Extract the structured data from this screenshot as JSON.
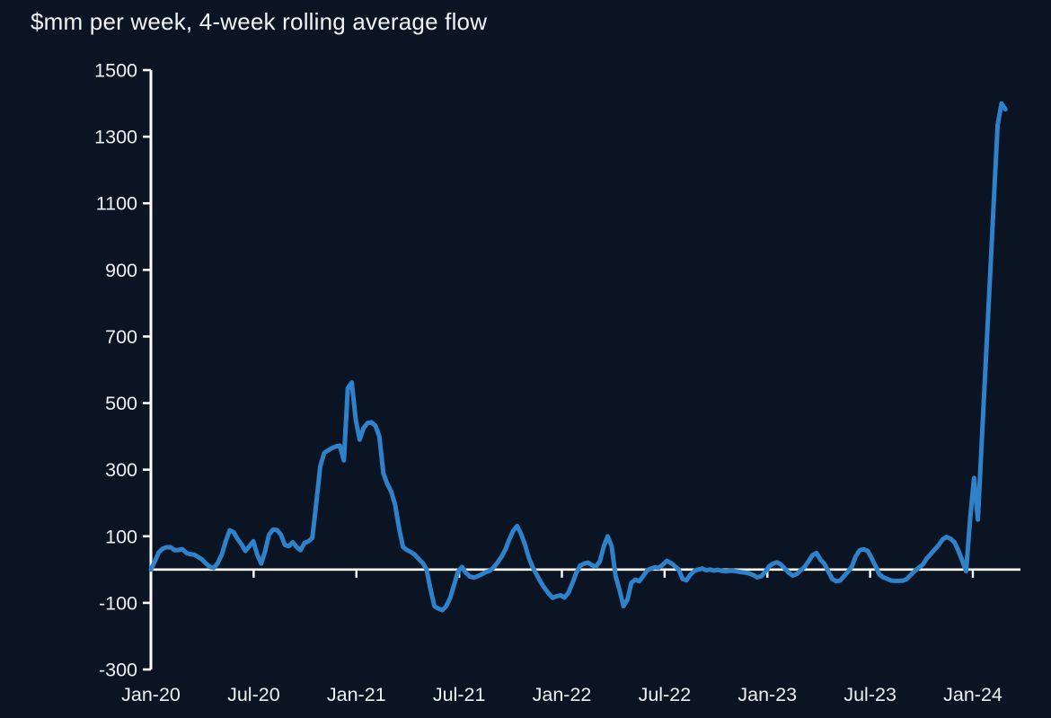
{
  "page": {
    "background": "#0a1422"
  },
  "header": {
    "title": "$mm per week, 4-week rolling average flow"
  },
  "chart_data": {
    "type": "line",
    "title": "$mm per week, 4-week rolling average flow",
    "unit": "$mm per week",
    "grid": false,
    "legend": null,
    "zero_line": true,
    "ylim": [
      -300,
      1500
    ],
    "y_ticks": [
      -300,
      -100,
      100,
      300,
      500,
      700,
      900,
      1100,
      1300,
      1500
    ],
    "x_tick_labels": [
      "Jan-20",
      "Jul-20",
      "Jan-21",
      "Jul-21",
      "Jan-22",
      "Jul-22",
      "Jan-23",
      "Jul-23",
      "Jan-24"
    ],
    "x_tick_months": [
      0,
      6,
      12,
      18,
      24,
      30,
      36,
      42,
      48
    ],
    "colors": {
      "line": "#2f82ca",
      "axis": "#ffffff",
      "text": "#eef1f4",
      "background": "#0a1422"
    },
    "series": [
      {
        "name": "4-week rolling average flow",
        "start": "Jan-20",
        "frequency": "weekly",
        "values": [
          0,
          25,
          52,
          63,
          67,
          67,
          58,
          59,
          61,
          50,
          46,
          45,
          38,
          30,
          18,
          8,
          5,
          20,
          45,
          85,
          118,
          112,
          92,
          76,
          56,
          70,
          85,
          45,
          18,
          55,
          105,
          120,
          119,
          105,
          74,
          70,
          82,
          68,
          58,
          80,
          85,
          95,
          200,
          310,
          350,
          358,
          365,
          370,
          372,
          328,
          545,
          562,
          450,
          390,
          425,
          440,
          442,
          432,
          400,
          290,
          258,
          235,
          195,
          125,
          68,
          59,
          53,
          45,
          32,
          20,
          0,
          -60,
          -110,
          -117,
          -122,
          -110,
          -85,
          -45,
          -5,
          8,
          -10,
          -21,
          -24,
          -20,
          -14,
          -8,
          -4,
          6,
          21,
          38,
          60,
          90,
          116,
          131,
          107,
          74,
          34,
          6,
          -16,
          -38,
          -56,
          -72,
          -85,
          -80,
          -77,
          -84,
          -70,
          -42,
          -10,
          12,
          18,
          21,
          13,
          9,
          25,
          70,
          100,
          70,
          -20,
          -62,
          -110,
          -90,
          -40,
          -30,
          -35,
          -20,
          -2,
          3,
          7,
          5,
          15,
          26,
          20,
          11,
          0,
          -28,
          -32,
          -15,
          -4,
          0,
          3,
          -2,
          0,
          -3,
          -1,
          -4,
          -5,
          -4,
          -4,
          -6,
          -8,
          -9,
          -12,
          -17,
          -23,
          -20,
          -6,
          10,
          18,
          22,
          15,
          3,
          -10,
          -18,
          -13,
          -2,
          8,
          25,
          43,
          50,
          30,
          18,
          -5,
          -28,
          -35,
          -33,
          -20,
          -6,
          10,
          40,
          58,
          61,
          56,
          35,
          10,
          -15,
          -23,
          -28,
          -33,
          -34,
          -34,
          -33,
          -28,
          -15,
          -4,
          6,
          15,
          33,
          46,
          60,
          73,
          90,
          98,
          93,
          83,
          58,
          28,
          -5,
          150,
          275,
          150,
          390,
          625,
          860,
          1100,
          1335,
          1400,
          1382
        ]
      }
    ]
  }
}
